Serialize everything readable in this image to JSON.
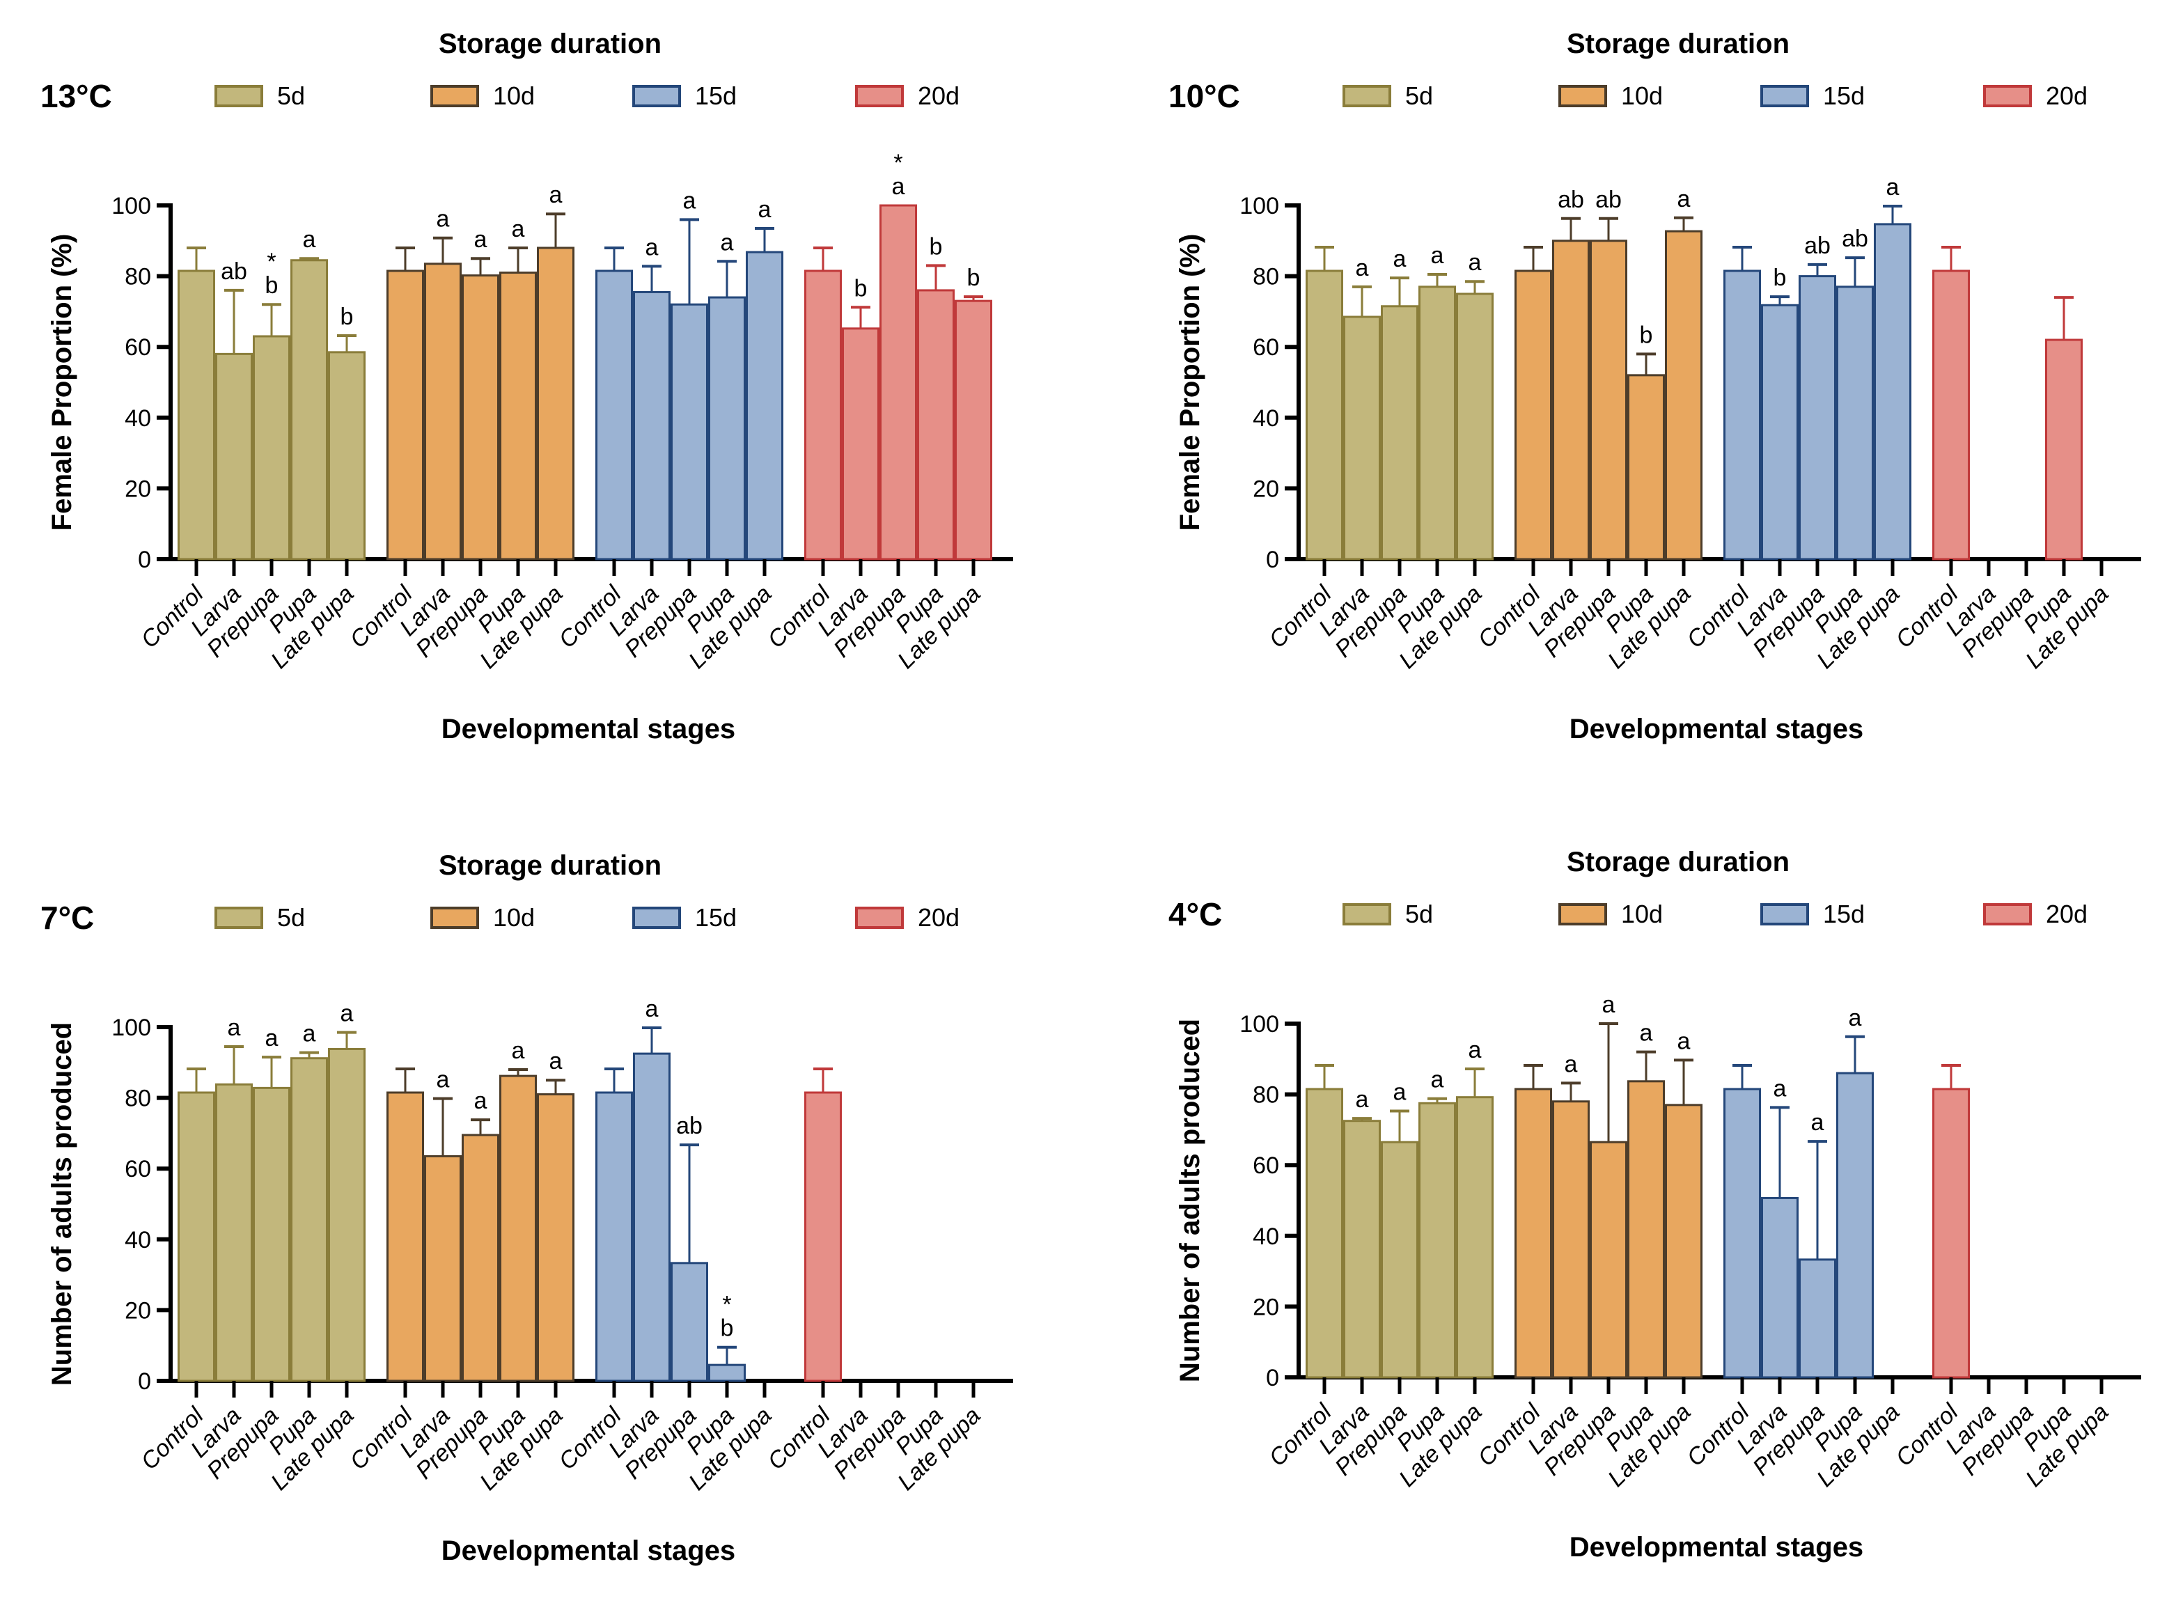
{
  "figure": {
    "legend_title": "Storage duration",
    "x_axis_title": "Developmental stages",
    "series_names": [
      "5d",
      "10d",
      "15d",
      "20d"
    ],
    "series_colors": {
      "5d": {
        "fill": "#C2B77C",
        "stroke": "#8A7D3A"
      },
      "10d": {
        "fill": "#E8A75F",
        "stroke": "#4D3D2A"
      },
      "15d": {
        "fill": "#9BB3D3",
        "stroke": "#24477A"
      },
      "20d": {
        "fill": "#E68F88",
        "stroke": "#C0393A"
      }
    }
  },
  "chart_data": [
    {
      "type": "bar",
      "panel": "13°C",
      "title": "13°C",
      "legend_title": "Storage duration",
      "xlabel": "Developmental stages",
      "ylabel": "Female Proportion (%)",
      "ylim": [
        0,
        100
      ],
      "yticks": [
        0,
        20,
        40,
        60,
        80,
        100
      ],
      "categories": [
        "Control",
        "Larva",
        "Prepupa",
        "Pupa",
        "Late pupa"
      ],
      "series": [
        {
          "name": "5d",
          "values": [
            81.5,
            58,
            63,
            84.5,
            58.5
          ],
          "error_upper": [
            88,
            76,
            72,
            85,
            63.2
          ],
          "annotations": [
            "",
            "ab",
            "* b",
            "a",
            "b"
          ]
        },
        {
          "name": "10d",
          "values": [
            81.5,
            83.5,
            80.2,
            81,
            88
          ],
          "error_upper": [
            88,
            90.8,
            85,
            88,
            97.6
          ],
          "annotations": [
            "",
            "a",
            "a",
            "a",
            "a"
          ]
        },
        {
          "name": "15d",
          "values": [
            81.5,
            75.5,
            72,
            74,
            86.8
          ],
          "error_upper": [
            88,
            82.8,
            96,
            84.2,
            93.5
          ],
          "annotations": [
            "",
            "a",
            "a",
            "a",
            "a"
          ]
        },
        {
          "name": "20d",
          "values": [
            81.5,
            65.2,
            100,
            76,
            73
          ],
          "error_upper": [
            88,
            71.2,
            100,
            83,
            74.2
          ],
          "annotations": [
            "",
            "b",
            "* a",
            "b",
            "b"
          ]
        }
      ]
    },
    {
      "type": "bar",
      "panel": "10°C",
      "title": "10°C",
      "legend_title": "Storage duration",
      "xlabel": "Developmental stages",
      "ylabel": "Female Proportion (%)",
      "ylim": [
        0,
        100
      ],
      "yticks": [
        0,
        20,
        40,
        60,
        80,
        100
      ],
      "categories": [
        "Control",
        "Larva",
        "Prepupa",
        "Pupa",
        "Late pupa"
      ],
      "series": [
        {
          "name": "5d",
          "values": [
            81.5,
            68.5,
            71.5,
            77,
            75
          ],
          "error_upper": [
            88.2,
            77,
            79.5,
            80.5,
            78.5
          ],
          "annotations": [
            "",
            "a",
            "a",
            "a",
            "a"
          ]
        },
        {
          "name": "10d",
          "values": [
            81.5,
            90,
            90,
            52,
            92.7
          ],
          "error_upper": [
            88.2,
            96.3,
            96.3,
            58,
            96.5
          ],
          "annotations": [
            "",
            "ab",
            "ab",
            "b",
            "a"
          ]
        },
        {
          "name": "15d",
          "values": [
            81.5,
            71.8,
            80,
            77,
            94.7
          ],
          "error_upper": [
            88.2,
            74.2,
            83.3,
            85.2,
            99.8
          ],
          "annotations": [
            "",
            "b",
            "ab",
            "ab",
            "a"
          ]
        },
        {
          "name": "20d",
          "values": [
            81.5,
            0,
            0,
            62,
            0
          ],
          "error_upper": [
            88.2,
            0,
            0,
            74,
            0
          ],
          "annotations": [
            "",
            "",
            "",
            "",
            ""
          ]
        }
      ]
    },
    {
      "type": "bar",
      "panel": "7°C",
      "title": "7°C",
      "legend_title": "Storage duration",
      "xlabel": "Developmental stages",
      "ylabel": "Number of adults produced",
      "ylim": [
        0,
        100
      ],
      "yticks": [
        0,
        20,
        40,
        60,
        80,
        100
      ],
      "categories": [
        "Control",
        "Larva",
        "Prepupa",
        "Pupa",
        "Late pupa"
      ],
      "series": [
        {
          "name": "5d",
          "values": [
            81.5,
            83.8,
            82.8,
            91.2,
            93.8
          ],
          "error_upper": [
            88.2,
            94.5,
            91.5,
            92.8,
            98.5
          ],
          "annotations": [
            "",
            "a",
            "a",
            "a",
            "a"
          ]
        },
        {
          "name": "10d",
          "values": [
            81.5,
            63.5,
            69.5,
            86.2,
            81
          ],
          "error_upper": [
            88.2,
            79.8,
            73.8,
            88,
            85
          ],
          "annotations": [
            "",
            "a",
            "a",
            "a",
            "a"
          ]
        },
        {
          "name": "15d",
          "values": [
            81.5,
            92.5,
            33.3,
            4.5,
            0
          ],
          "error_upper": [
            88.2,
            99.8,
            66.7,
            9.5,
            0
          ],
          "annotations": [
            "",
            "a",
            "ab",
            "* b",
            ""
          ]
        },
        {
          "name": "20d",
          "values": [
            81.5,
            0,
            0,
            0,
            0
          ],
          "error_upper": [
            88.2,
            0,
            0,
            0,
            0
          ],
          "annotations": [
            "",
            "",
            "",
            "",
            ""
          ]
        }
      ]
    },
    {
      "type": "bar",
      "panel": "4°C",
      "title": "4°C",
      "legend_title": "Storage duration",
      "xlabel": "Developmental stages",
      "ylabel": "Number of adults produced",
      "ylim": [
        0,
        100
      ],
      "yticks": [
        0,
        20,
        40,
        60,
        80,
        100
      ],
      "categories": [
        "Control",
        "Larva",
        "Prepupa",
        "Pupa",
        "Late pupa"
      ],
      "series": [
        {
          "name": "5d",
          "values": [
            81.5,
            72.5,
            66.5,
            77.5,
            79.2
          ],
          "error_upper": [
            88.2,
            73.2,
            75.3,
            78.8,
            87.2
          ],
          "annotations": [
            "",
            "a",
            "a",
            "a",
            "a"
          ]
        },
        {
          "name": "10d",
          "values": [
            81.5,
            78,
            66.5,
            83.7,
            77
          ],
          "error_upper": [
            88.2,
            83.2,
            100,
            92,
            89.7
          ],
          "annotations": [
            "",
            "a",
            "a",
            "a",
            "a"
          ]
        },
        {
          "name": "15d",
          "values": [
            81.5,
            50.7,
            33.3,
            86,
            0
          ],
          "error_upper": [
            88.2,
            76.3,
            66.7,
            96.3,
            0
          ],
          "annotations": [
            "",
            "a",
            "a",
            "a",
            ""
          ]
        },
        {
          "name": "20d",
          "values": [
            81.5,
            0,
            0,
            0,
            0
          ],
          "error_upper": [
            88.2,
            0,
            0,
            0,
            0
          ],
          "annotations": [
            "",
            "",
            "",
            "",
            ""
          ]
        }
      ]
    }
  ]
}
